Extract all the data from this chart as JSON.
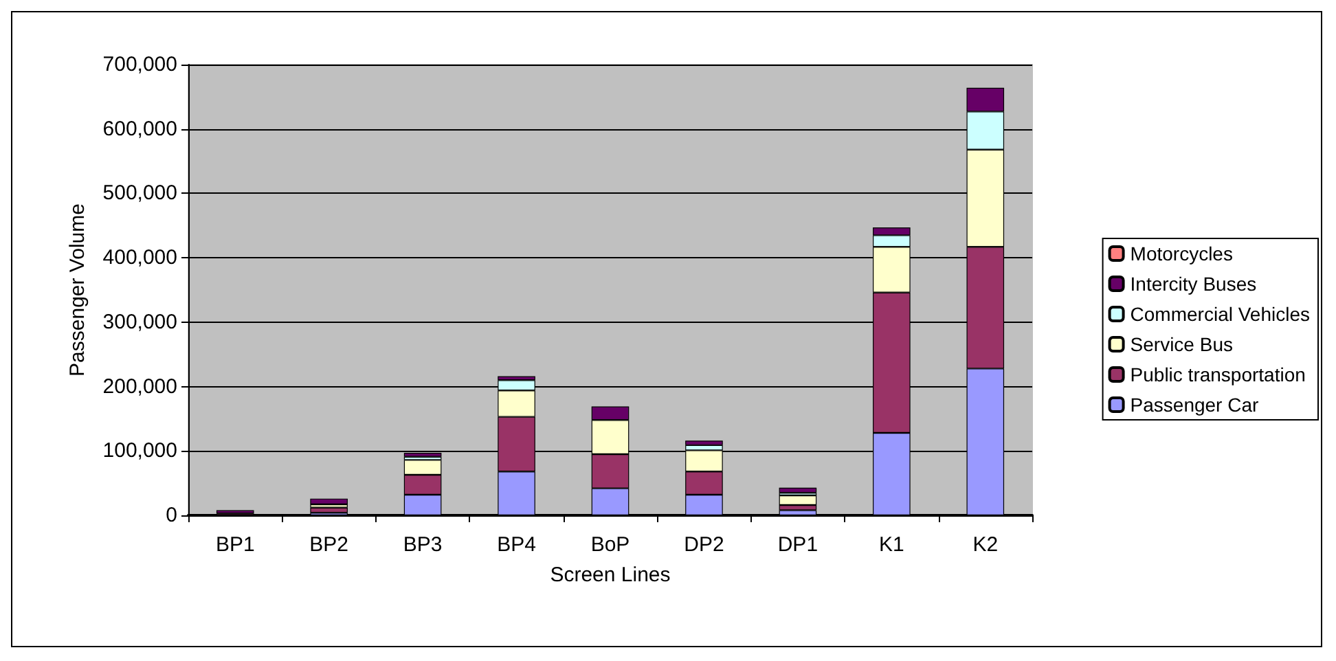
{
  "chart_data": {
    "type": "bar",
    "stacked": true,
    "xlabel": "Screen Lines",
    "ylabel": "Passenger Volume",
    "categories": [
      "BP1",
      "BP2",
      "BP3",
      "BP4",
      "BoP",
      "DP2",
      "DP1",
      "K1",
      "K2"
    ],
    "series": [
      {
        "name": "Passenger Car",
        "color": "#9999ff",
        "values": [
          null,
          4000,
          32000,
          68000,
          42000,
          32000,
          8000,
          128000,
          228000
        ]
      },
      {
        "name": "Public transportation",
        "color": "#993366",
        "values": [
          3000,
          8000,
          31000,
          85000,
          53000,
          36000,
          8000,
          218000,
          189000
        ]
      },
      {
        "name": "Service Bus",
        "color": "#ffffcc",
        "values": [
          0,
          5000,
          23000,
          41000,
          53000,
          33000,
          15000,
          71000,
          151000
        ]
      },
      {
        "name": "Commercial Vehicles",
        "color": "#ccffff",
        "values": [
          0,
          null,
          5000,
          16000,
          null,
          8000,
          4000,
          18000,
          59000
        ]
      },
      {
        "name": "Intercity Buses",
        "color": "#660066",
        "values": [
          5000,
          9000,
          6000,
          6000,
          21000,
          7000,
          8000,
          12000,
          37000
        ]
      },
      {
        "name": "Motorcycles",
        "color": "#ff8080",
        "values": [
          0,
          0,
          0,
          0,
          0,
          0,
          0,
          0,
          0
        ]
      }
    ],
    "ylim": [
      0,
      700000
    ],
    "yticks": [
      {
        "value": 0,
        "label": "0"
      },
      {
        "value": 100000,
        "label": "100,000"
      },
      {
        "value": 200000,
        "label": "200,000"
      },
      {
        "value": 300000,
        "label": "300,000"
      },
      {
        "value": 400000,
        "label": "400,000"
      },
      {
        "value": 500000,
        "label": "500,000"
      },
      {
        "value": 600000,
        "label": "600,000"
      },
      {
        "value": 700000,
        "label": "700,000"
      }
    ],
    "grid": "y",
    "legend": "right"
  }
}
